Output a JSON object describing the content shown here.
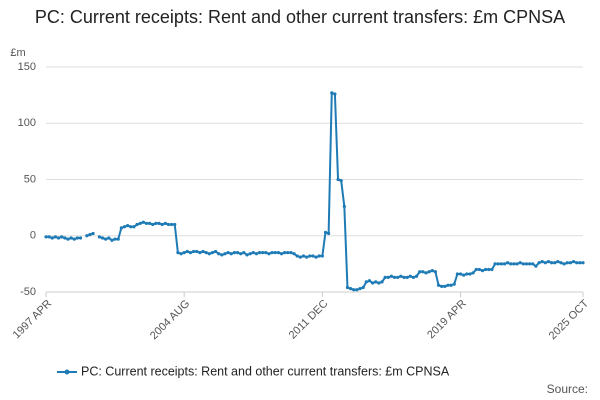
{
  "chart_data": {
    "type": "line",
    "title": "PC: Current receipts: Rent and other current transfers: £m CPNSA",
    "y_label": "£m",
    "source": "Source:",
    "x": [
      "1997 APR",
      "1997 JUN",
      "1997 AUG",
      "1997 OCT",
      "1997 DEC",
      "1998 FEB",
      "1998 APR",
      "1998 JUN",
      "1998 AUG",
      "1998 OCT",
      "1998 DEC",
      "1999 FEB",
      "1999 APR",
      "1999 JUN",
      "1999 AUG",
      "1999 OCT",
      "1999 DEC",
      "2000 FEB",
      "2000 APR",
      "2000 JUN",
      "2000 AUG",
      "2000 OCT",
      "2000 DEC",
      "2001 FEB",
      "2001 APR",
      "2001 JUN",
      "2001 AUG",
      "2001 OCT",
      "2001 DEC",
      "2002 FEB",
      "2002 APR",
      "2002 JUN",
      "2002 AUG",
      "2002 OCT",
      "2002 DEC",
      "2003 FEB",
      "2003 APR",
      "2003 JUN",
      "2003 AUG",
      "2003 OCT",
      "2003 DEC",
      "2004 FEB",
      "2004 APR",
      "2004 JUN",
      "2004 AUG",
      "2004 OCT",
      "2004 DEC",
      "2005 FEB",
      "2005 APR",
      "2005 JUN",
      "2005 AUG",
      "2005 OCT",
      "2005 DEC",
      "2006 FEB",
      "2006 APR",
      "2006 JUN",
      "2006 AUG",
      "2006 OCT",
      "2006 DEC",
      "2007 FEB",
      "2007 APR",
      "2007 JUN",
      "2007 AUG",
      "2007 OCT",
      "2007 DEC",
      "2008 FEB",
      "2008 APR",
      "2008 JUN",
      "2008 AUG",
      "2008 OCT",
      "2008 DEC",
      "2009 FEB",
      "2009 APR",
      "2009 JUN",
      "2009 AUG",
      "2009 OCT",
      "2009 DEC",
      "2010 FEB",
      "2010 APR",
      "2010 JUN",
      "2010 AUG",
      "2010 OCT",
      "2010 DEC",
      "2011 FEB",
      "2011 APR",
      "2011 JUN",
      "2011 AUG",
      "2011 OCT",
      "2011 DEC",
      "2012 FEB",
      "2012 APR",
      "2012 JUN",
      "2012 AUG",
      "2012 OCT",
      "2012 DEC",
      "2013 FEB",
      "2013 APR",
      "2013 JUN",
      "2013 AUG",
      "2013 OCT",
      "2013 DEC",
      "2014 FEB",
      "2014 APR",
      "2014 JUN",
      "2014 AUG",
      "2014 OCT",
      "2014 DEC",
      "2015 FEB",
      "2015 APR",
      "2015 JUN",
      "2015 AUG",
      "2015 OCT",
      "2015 DEC",
      "2016 FEB",
      "2016 APR",
      "2016 JUN",
      "2016 AUG",
      "2016 OCT",
      "2016 DEC",
      "2017 FEB",
      "2017 APR",
      "2017 JUN",
      "2017 AUG",
      "2017 OCT",
      "2017 DEC",
      "2018 FEB",
      "2018 APR",
      "2018 JUN",
      "2018 AUG",
      "2018 OCT",
      "2018 DEC",
      "2019 FEB",
      "2019 APR",
      "2019 JUN",
      "2019 AUG",
      "2019 OCT",
      "2019 DEC",
      "2020 FEB",
      "2020 APR",
      "2020 JUN",
      "2020 AUG",
      "2020 OCT",
      "2020 DEC",
      "2021 FEB",
      "2021 APR",
      "2021 JUN",
      "2021 AUG",
      "2021 OCT",
      "2021 DEC",
      "2022 FEB",
      "2022 APR",
      "2022 JUN",
      "2022 AUG",
      "2022 OCT",
      "2022 DEC",
      "2023 FEB",
      "2023 APR",
      "2023 JUN",
      "2023 AUG",
      "2023 OCT",
      "2023 DEC",
      "2024 FEB",
      "2024 APR",
      "2024 JUN",
      "2024 AUG",
      "2024 OCT",
      "2024 DEC",
      "2025 FEB",
      "2025 APR",
      "2025 JUN",
      "2025 AUG",
      "2025 OCT"
    ],
    "series": [
      {
        "name": "PC: Current receipts: Rent and other current transfers: £m CPNSA",
        "color": "#1f7bb6",
        "values": [
          -1,
          -1,
          -2,
          -1,
          -2,
          -1,
          -2,
          -3,
          -2,
          -3,
          -2,
          -2,
          null,
          0,
          1,
          2,
          null,
          -1,
          -2,
          -3,
          -2,
          -4,
          -3,
          -3,
          7,
          8,
          9,
          8,
          8,
          10,
          11,
          12,
          11,
          11,
          10,
          11,
          11,
          10,
          11,
          10,
          10,
          10,
          -15,
          -16,
          -15,
          -14,
          -15,
          -14,
          -14,
          -15,
          -14,
          -15,
          -16,
          -15,
          -14,
          -16,
          -17,
          -16,
          -15,
          -16,
          -15,
          -15,
          -16,
          -15,
          -17,
          -16,
          -15,
          -16,
          -15,
          -15,
          -15,
          -16,
          -15,
          -15,
          -15,
          -16,
          -15,
          -15,
          -15,
          -16,
          -18,
          -19,
          -18,
          -19,
          -18,
          -18,
          -19,
          -18,
          -18,
          3,
          2,
          127,
          126,
          50,
          49,
          26,
          -46,
          -47,
          -48,
          -48,
          -47,
          -46,
          -41,
          -40,
          -42,
          -41,
          -42,
          -41,
          -37,
          -37,
          -36,
          -37,
          -37,
          -36,
          -37,
          -37,
          -36,
          -37,
          -36,
          -32,
          -32,
          -33,
          -32,
          -31,
          -32,
          -44,
          -45,
          -45,
          -44,
          -44,
          -43,
          -34,
          -34,
          -35,
          -34,
          -34,
          -33,
          -30,
          -30,
          -31,
          -30,
          -30,
          -30,
          -25,
          -25,
          -25,
          -25,
          -24,
          -25,
          -25,
          -25,
          -24,
          -25,
          -25,
          -25,
          -25,
          -27,
          -24,
          -23,
          -24,
          -23,
          -24,
          -24,
          -23,
          -24,
          -25,
          -24,
          -24,
          -23,
          -24,
          -24,
          -24
        ]
      }
    ],
    "xticks": [
      "1997 APR",
      "2004 AUG",
      "2011 DEC",
      "2019 APR",
      "2025 OCT"
    ],
    "ylim": [
      -50,
      150
    ],
    "yticks": [
      -50,
      0,
      50,
      100,
      150
    ],
    "grid": true
  }
}
